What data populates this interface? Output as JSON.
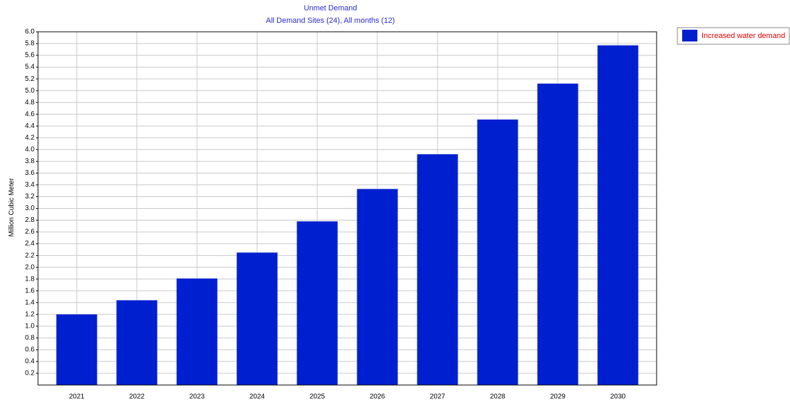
{
  "chart_data": {
    "type": "bar",
    "title": "Unmet Demand",
    "subtitle": "All Demand Sites (24),  All months (12)",
    "y_label": "Million Cubic Meter",
    "categories": [
      "2021",
      "2022",
      "2023",
      "2024",
      "2025",
      "2026",
      "2027",
      "2028",
      "2029",
      "2030"
    ],
    "series": [
      {
        "name": "Increased water demand",
        "color": "#0020d0",
        "values": [
          1.2,
          1.44,
          1.81,
          2.25,
          2.78,
          3.33,
          3.92,
          4.51,
          5.12,
          5.77
        ]
      }
    ],
    "ylim": [
      0,
      6
    ],
    "yticks": [
      0.2,
      0.4,
      0.6,
      0.8,
      {
        "value": 1,
        "label": "1.0"
      },
      1.2,
      1.4,
      1.6,
      1.8,
      {
        "value": 2,
        "label": "2.0"
      },
      2.2,
      2.4,
      2.6,
      2.8,
      {
        "value": 3,
        "label": "3.0"
      },
      3.2,
      3.4,
      3.6,
      3.8,
      {
        "value": 4,
        "label": "4.0"
      },
      4.2,
      4.4,
      4.6,
      4.8,
      {
        "value": 5,
        "label": "5.0"
      },
      5.2,
      5.4,
      5.6,
      5.8,
      {
        "value": 6,
        "label": "6.0"
      }
    ],
    "grid": true
  }
}
